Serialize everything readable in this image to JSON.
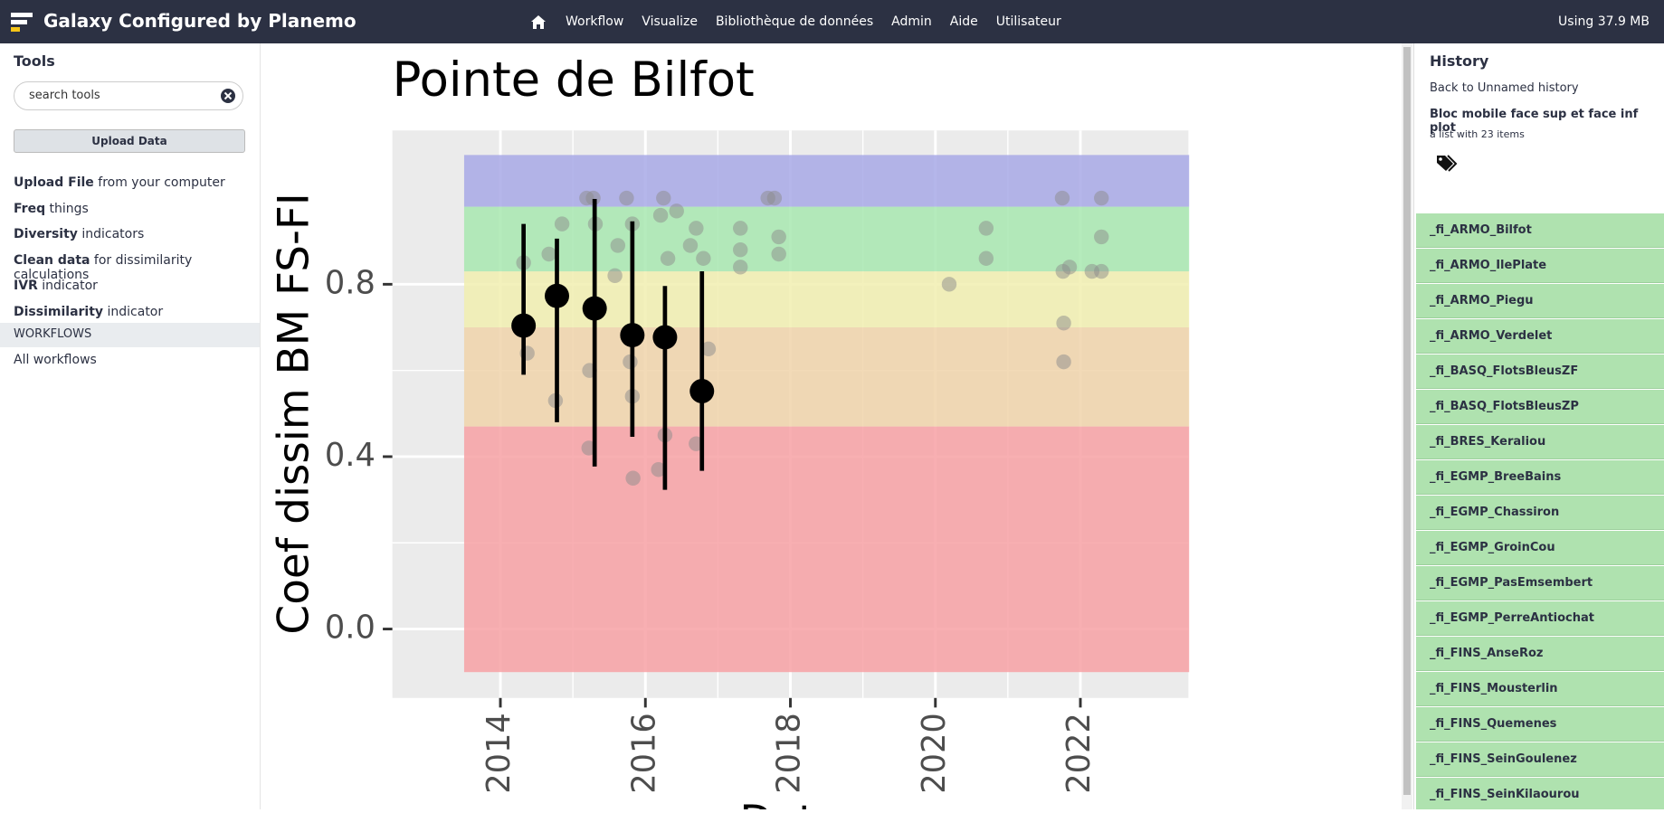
{
  "navbar": {
    "brand": "Galaxy Configured by Planemo",
    "items": [
      "Workflow",
      "Visualize",
      "Bibliothèque de données",
      "Admin",
      "Aide",
      "Utilisateur"
    ],
    "usage": "Using 37.9 MB"
  },
  "tools": {
    "title": "Tools",
    "search": "search tools",
    "upload": "Upload Data",
    "sections": [
      {
        "bold": "Upload File",
        "rest": "from your computer"
      },
      {
        "bold": "Freq",
        "rest": "things"
      },
      {
        "bold": "Diversity",
        "rest": "indicators"
      },
      {
        "bold": "Clean data",
        "rest": "for dissimilarity calculations"
      },
      {
        "bold": "IVR",
        "rest": "indicator"
      },
      {
        "bold": "Dissimilarity",
        "rest": "indicator"
      }
    ],
    "workflows_header": "WORKFLOWS",
    "all_workflows": "All workflows"
  },
  "history": {
    "title": "History",
    "back": "Back to Unnamed history",
    "collection_name": "Bloc mobile face sup et face inf plot",
    "collection_info": "a list with 23 items",
    "items": [
      "_fi_ARMO_Bilfot",
      "_fi_ARMO_IlePlate",
      "_fi_ARMO_Piegu",
      "_fi_ARMO_Verdelet",
      "_fi_BASQ_FlotsBleusZF",
      "_fi_BASQ_FlotsBleusZP",
      "_fi_BRES_Keraliou",
      "_fi_EGMP_BreeBains",
      "_fi_EGMP_Chassiron",
      "_fi_EGMP_GroinCou",
      "_fi_EGMP_PasEmsembert",
      "_fi_EGMP_PerreAntiochat",
      "_fi_FINS_AnseRoz",
      "_fi_FINS_Mousterlin",
      "_fi_FINS_Quemenes",
      "_fi_FINS_SeinGoulenez",
      "_fi_FINS_SeinKilaourou"
    ]
  },
  "chart_data": {
    "type": "scatter",
    "title": "Pointe de Bilfot",
    "x_label": "Date",
    "y_label": "Coef dissim BM FS-FI",
    "xlim": [
      2012.51,
      2023.49
    ],
    "ylim": [
      -0.16,
      1.157
    ],
    "xticks": [
      2014,
      2016,
      2018,
      2020,
      2022
    ],
    "yticks": [
      {
        "value": 0,
        "label": "0.0"
      },
      0.4,
      0.8
    ],
    "grid": true,
    "band_xlim": [
      2013.5,
      2023.5
    ],
    "bands": [
      {
        "ymin": -0.1,
        "ymax": 0.47,
        "color": "#f7a1a4"
      },
      {
        "ymin": 0.47,
        "ymax": 0.7,
        "color": "#f0d3aa"
      },
      {
        "ymin": 0.7,
        "ymax": 0.83,
        "color": "#f1efb0"
      },
      {
        "ymin": 0.83,
        "ymax": 0.98,
        "color": "#a8e8b0"
      },
      {
        "ymin": 0.98,
        "ymax": 1.1,
        "color": "#a8a9e6"
      }
    ],
    "points": {
      "color": "#8c8c8c",
      "x": [
        2014.32,
        2014.37,
        2014.67,
        2014.76,
        2014.85,
        2015.19,
        2015.22,
        2015.23,
        2015.28,
        2015.31,
        2015.58,
        2015.62,
        2015.74,
        2015.79,
        2015.82,
        2015.83,
        2015.82,
        2016.18,
        2016.21,
        2016.25,
        2016.27,
        2016.31,
        2016.43,
        2016.62,
        2016.7,
        2016.7,
        2016.8,
        2016.87,
        2017.31,
        2017.31,
        2017.31,
        2017.69,
        2017.78,
        2017.84,
        2017.84,
        2020.19,
        2020.7,
        2020.7,
        2021.75,
        2021.76,
        2021.77,
        2021.77,
        2021.85,
        2022.16,
        2022.29,
        2022.29,
        2022.29
      ],
      "y": [
        0.85,
        0.64,
        0.87,
        0.53,
        0.94,
        1.0,
        0.42,
        0.6,
        1.0,
        0.94,
        0.82,
        0.89,
        1.0,
        0.62,
        0.54,
        0.35,
        0.94,
        0.37,
        0.96,
        1.0,
        0.45,
        0.86,
        0.97,
        0.89,
        0.93,
        0.43,
        0.86,
        0.65,
        0.93,
        0.88,
        0.84,
        1.0,
        1.0,
        0.91,
        0.87,
        0.8,
        0.93,
        0.86,
        1.0,
        0.83,
        0.71,
        0.62,
        0.84,
        0.83,
        1.0,
        0.91,
        0.83
      ]
    },
    "means": {
      "color": "#000000",
      "x": [
        2014.32,
        2014.78,
        2015.3,
        2015.82,
        2016.27,
        2016.78
      ],
      "y": [
        0.704,
        0.773,
        0.744,
        0.682,
        0.677,
        0.552
      ],
      "lower": [
        0.59,
        0.48,
        0.377,
        0.446,
        0.323,
        0.367
      ],
      "upper": [
        0.94,
        0.906,
        0.998,
        0.946,
        0.796,
        0.83
      ]
    }
  }
}
